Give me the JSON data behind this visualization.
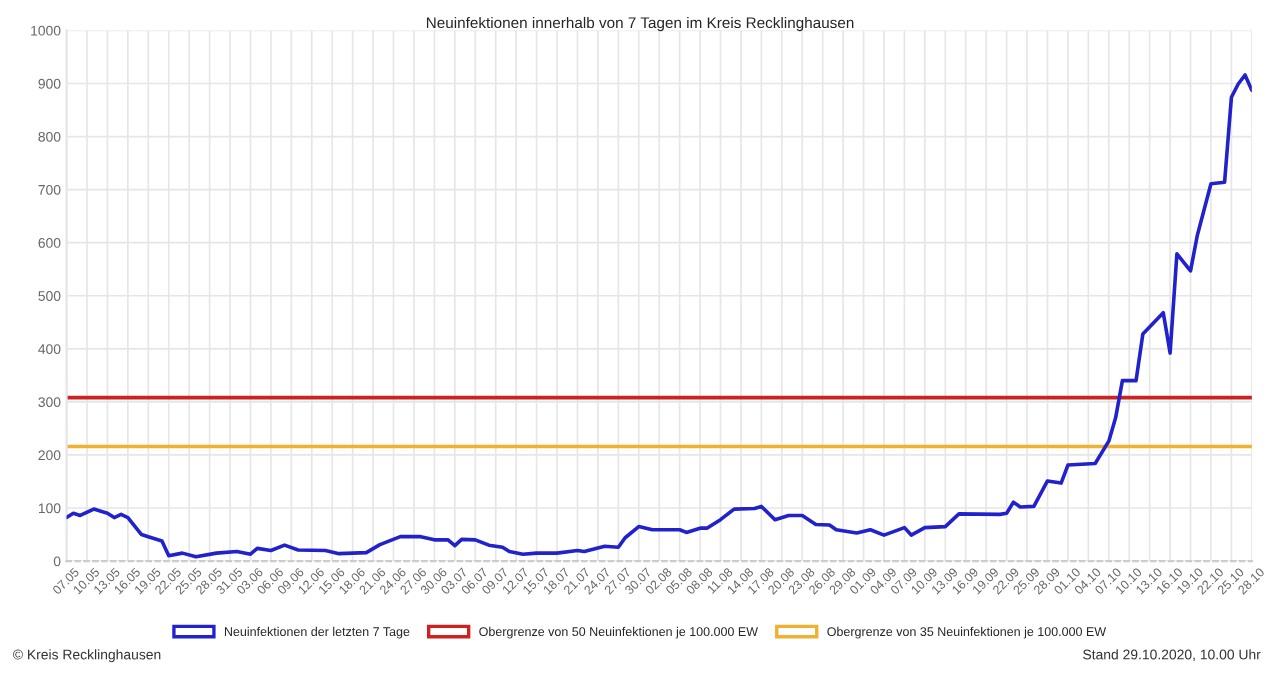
{
  "chart_data": {
    "type": "line",
    "title": "Neuinfektionen innerhalb von 7 Tagen im Kreis Recklinghausen",
    "xlim": [
      "2020-05-07",
      "2020-10-28"
    ],
    "ylim": [
      0,
      1000
    ],
    "yticks": [
      0,
      100,
      200,
      300,
      400,
      500,
      600,
      700,
      800,
      900,
      1000
    ],
    "xticks": [
      {
        "value": "2020-05-07",
        "label": "07.05"
      },
      {
        "value": "2020-05-10",
        "label": "10.05"
      },
      {
        "value": "2020-05-13",
        "label": "13.05"
      },
      {
        "value": "2020-05-16",
        "label": "16.05"
      },
      {
        "value": "2020-05-19",
        "label": "19.05"
      },
      {
        "value": "2020-05-22",
        "label": "22.05"
      },
      {
        "value": "2020-05-25",
        "label": "25.05"
      },
      {
        "value": "2020-05-28",
        "label": "28.05"
      },
      {
        "value": "2020-05-31",
        "label": "31.05"
      },
      {
        "value": "2020-06-03",
        "label": "03.06"
      },
      {
        "value": "2020-06-06",
        "label": "06.06"
      },
      {
        "value": "2020-06-09",
        "label": "09.06"
      },
      {
        "value": "2020-06-12",
        "label": "12.06"
      },
      {
        "value": "2020-06-15",
        "label": "15.06"
      },
      {
        "value": "2020-06-18",
        "label": "18.06"
      },
      {
        "value": "2020-06-21",
        "label": "21.06"
      },
      {
        "value": "2020-06-24",
        "label": "24.06"
      },
      {
        "value": "2020-06-27",
        "label": "27.06"
      },
      {
        "value": "2020-06-30",
        "label": "30.06"
      },
      {
        "value": "2020-07-03",
        "label": "03.07"
      },
      {
        "value": "2020-07-06",
        "label": "06.07"
      },
      {
        "value": "2020-07-09",
        "label": "09.07"
      },
      {
        "value": "2020-07-12",
        "label": "12.07"
      },
      {
        "value": "2020-07-15",
        "label": "15.07"
      },
      {
        "value": "2020-07-18",
        "label": "18.07"
      },
      {
        "value": "2020-07-21",
        "label": "21.07"
      },
      {
        "value": "2020-07-24",
        "label": "24.07"
      },
      {
        "value": "2020-07-27",
        "label": "27.07"
      },
      {
        "value": "2020-07-30",
        "label": "30.07"
      },
      {
        "value": "2020-08-02",
        "label": "02.08"
      },
      {
        "value": "2020-08-05",
        "label": "05.08"
      },
      {
        "value": "2020-08-08",
        "label": "08.08"
      },
      {
        "value": "2020-08-11",
        "label": "11.08"
      },
      {
        "value": "2020-08-14",
        "label": "14.08"
      },
      {
        "value": "2020-08-17",
        "label": "17.08"
      },
      {
        "value": "2020-08-20",
        "label": "20.08"
      },
      {
        "value": "2020-08-23",
        "label": "23.08"
      },
      {
        "value": "2020-08-26",
        "label": "26.08"
      },
      {
        "value": "2020-08-29",
        "label": "29.08"
      },
      {
        "value": "2020-09-01",
        "label": "01.09"
      },
      {
        "value": "2020-09-04",
        "label": "04.09"
      },
      {
        "value": "2020-09-07",
        "label": "07.09"
      },
      {
        "value": "2020-09-10",
        "label": "10.09"
      },
      {
        "value": "2020-09-13",
        "label": "13.09"
      },
      {
        "value": "2020-09-16",
        "label": "16.09"
      },
      {
        "value": "2020-09-19",
        "label": "19.09"
      },
      {
        "value": "2020-09-22",
        "label": "22.09"
      },
      {
        "value": "2020-09-25",
        "label": "25.09"
      },
      {
        "value": "2020-09-28",
        "label": "28.09"
      },
      {
        "value": "2020-10-01",
        "label": "01.10"
      },
      {
        "value": "2020-10-04",
        "label": "04.10"
      },
      {
        "value": "2020-10-07",
        "label": "07.10"
      },
      {
        "value": "2020-10-10",
        "label": "10.10"
      },
      {
        "value": "2020-10-13",
        "label": "13.10"
      },
      {
        "value": "2020-10-16",
        "label": "16.10"
      },
      {
        "value": "2020-10-19",
        "label": "19.10"
      },
      {
        "value": "2020-10-22",
        "label": "22.10"
      },
      {
        "value": "2020-10-25",
        "label": "25.10"
      },
      {
        "value": "2020-10-28",
        "label": "28.10"
      }
    ],
    "grid": true,
    "legend": "bottom",
    "series": [
      {
        "name": "Neuinfektionen der letzten 7 Tage",
        "color": "#2222cc",
        "x": [
          "2020-05-07",
          "2020-05-08",
          "2020-05-09",
          "2020-05-11",
          "2020-05-13",
          "2020-05-14",
          "2020-05-15",
          "2020-05-16",
          "2020-05-18",
          "2020-05-19",
          "2020-05-21",
          "2020-05-22",
          "2020-05-24",
          "2020-05-26",
          "2020-05-29",
          "2020-06-01",
          "2020-06-03",
          "2020-06-04",
          "2020-06-06",
          "2020-06-08",
          "2020-06-10",
          "2020-06-14",
          "2020-06-16",
          "2020-06-20",
          "2020-06-22",
          "2020-06-25",
          "2020-06-28",
          "2020-06-30",
          "2020-07-02",
          "2020-07-03",
          "2020-07-04",
          "2020-07-06",
          "2020-07-08",
          "2020-07-10",
          "2020-07-11",
          "2020-07-13",
          "2020-07-15",
          "2020-07-18",
          "2020-07-21",
          "2020-07-22",
          "2020-07-25",
          "2020-07-27",
          "2020-07-28",
          "2020-07-30",
          "2020-08-01",
          "2020-08-05",
          "2020-08-06",
          "2020-08-08",
          "2020-08-09",
          "2020-08-11",
          "2020-08-13",
          "2020-08-16",
          "2020-08-17",
          "2020-08-19",
          "2020-08-21",
          "2020-08-23",
          "2020-08-25",
          "2020-08-27",
          "2020-08-28",
          "2020-08-31",
          "2020-09-02",
          "2020-09-04",
          "2020-09-07",
          "2020-09-08",
          "2020-09-10",
          "2020-09-13",
          "2020-09-15",
          "2020-09-21",
          "2020-09-22",
          "2020-09-23",
          "2020-09-24",
          "2020-09-26",
          "2020-09-28",
          "2020-09-30",
          "2020-10-01",
          "2020-10-05",
          "2020-10-07",
          "2020-10-08",
          "2020-10-09",
          "2020-10-11",
          "2020-10-12",
          "2020-10-15",
          "2020-10-16",
          "2020-10-17",
          "2020-10-19",
          "2020-10-20",
          "2020-10-22",
          "2020-10-24",
          "2020-10-25",
          "2020-10-26",
          "2020-10-27",
          "2020-10-28"
        ],
        "values": [
          82,
          90,
          86,
          98,
          90,
          82,
          88,
          82,
          50,
          46,
          38,
          10,
          15,
          8,
          15,
          18,
          13,
          24,
          20,
          30,
          21,
          20,
          14,
          16,
          31,
          46,
          46,
          40,
          40,
          29,
          41,
          40,
          30,
          26,
          18,
          13,
          15,
          15,
          20,
          18,
          28,
          26,
          44,
          65,
          59,
          59,
          54,
          62,
          62,
          78,
          98,
          99,
          103,
          78,
          86,
          86,
          69,
          68,
          59,
          53,
          59,
          49,
          63,
          49,
          63,
          65,
          89,
          88,
          90,
          111,
          102,
          103,
          151,
          147,
          181,
          184,
          226,
          270,
          340,
          340,
          428,
          468,
          392,
          579,
          547,
          614,
          711,
          714,
          874,
          899,
          916,
          887
        ]
      }
    ],
    "ref_lines": [
      {
        "axis": "y",
        "value": 308,
        "label": "Obergrenze von 50 Neuinfektionen je 100.000 EW",
        "color": "#cc2222"
      },
      {
        "axis": "y",
        "value": 216,
        "label": "Obergrenze von 35 Neuinfektionen je 100.000 EW",
        "color": "#f0b030"
      }
    ],
    "annotations": [
      "© Kreis Recklinghausen",
      "Stand 29.10.2020, 10.00 Uhr"
    ]
  }
}
